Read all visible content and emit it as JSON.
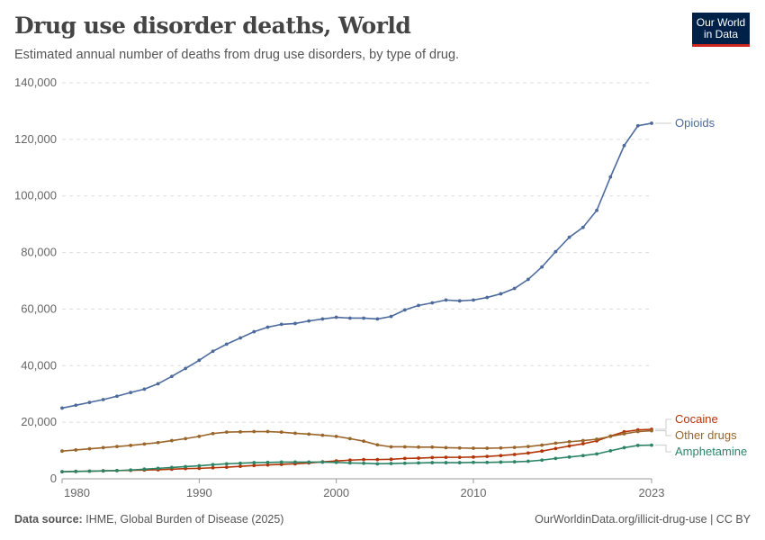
{
  "header": {
    "title": "Drug use disorder deaths, World",
    "subtitle": "Estimated annual number of deaths from drug use disorders, by type of drug.",
    "logo": "Our World in Data"
  },
  "footer": {
    "source_label": "Data source:",
    "source": "IHME, Global Burden of Disease (2025)",
    "link": "OurWorldinData.org/illicit-drug-use | CC BY"
  },
  "chart_data": {
    "type": "line",
    "title": "Drug use disorder deaths, World",
    "xlim": [
      1980,
      2023
    ],
    "ylim": [
      0,
      140000
    ],
    "x_ticks": [
      "1980",
      "1990",
      "2000",
      "2010",
      "2023"
    ],
    "y_ticks": [
      "0",
      "20,000",
      "40,000",
      "60,000",
      "80,000",
      "100,000",
      "120,000",
      "140,000"
    ],
    "grid": "horizontal dashed",
    "legend": "right, line-end labels",
    "x": [
      1980,
      1981,
      1982,
      1983,
      1984,
      1985,
      1986,
      1987,
      1988,
      1989,
      1990,
      1991,
      1992,
      1993,
      1994,
      1995,
      1996,
      1997,
      1998,
      1999,
      2000,
      2001,
      2002,
      2003,
      2004,
      2005,
      2006,
      2007,
      2008,
      2009,
      2010,
      2011,
      2012,
      2013,
      2014,
      2015,
      2016,
      2017,
      2018,
      2019,
      2020,
      2021,
      2022,
      2023
    ],
    "series": [
      {
        "name": "Opioids",
        "color": "#4c6a9c",
        "values": [
          25000,
          26000,
          27000,
          28000,
          29200,
          30500,
          31700,
          33600,
          36200,
          39000,
          41900,
          45100,
          47600,
          49800,
          52000,
          53600,
          54600,
          54900,
          55800,
          56500,
          57100,
          56800,
          56800,
          56500,
          57400,
          59700,
          61300,
          62200,
          63200,
          62900,
          63200,
          64100,
          65400,
          67300,
          70500,
          74900,
          80300,
          85400,
          88900,
          94900,
          106700,
          117800,
          124800,
          125700
        ]
      },
      {
        "name": "Cocaine",
        "color": "#b13507",
        "values": [
          2500,
          2600,
          2700,
          2800,
          2900,
          3000,
          3100,
          3200,
          3400,
          3600,
          3700,
          3900,
          4100,
          4400,
          4700,
          4900,
          5100,
          5300,
          5600,
          6000,
          6300,
          6600,
          6800,
          6800,
          6900,
          7200,
          7300,
          7500,
          7600,
          7600,
          7700,
          7900,
          8200,
          8600,
          9100,
          9800,
          10700,
          11600,
          12400,
          13400,
          15100,
          16600,
          17300,
          17500
        ]
      },
      {
        "name": "Other drugs",
        "color": "#9a652a",
        "values": [
          9800,
          10200,
          10600,
          11000,
          11400,
          11800,
          12300,
          12800,
          13500,
          14200,
          15000,
          16000,
          16500,
          16600,
          16700,
          16700,
          16500,
          16100,
          15800,
          15400,
          15000,
          14200,
          13300,
          12000,
          11300,
          11300,
          11200,
          11200,
          11000,
          10900,
          10800,
          10800,
          10900,
          11100,
          11400,
          11900,
          12600,
          13100,
          13500,
          14000,
          15000,
          15900,
          16700,
          17000
        ]
      },
      {
        "name": "Amphetamine",
        "color": "#2c8465",
        "values": [
          2500,
          2600,
          2700,
          2800,
          2900,
          3100,
          3400,
          3700,
          4000,
          4300,
          4600,
          5000,
          5300,
          5500,
          5700,
          5800,
          5900,
          5900,
          5900,
          5900,
          5800,
          5600,
          5500,
          5300,
          5400,
          5500,
          5600,
          5700,
          5700,
          5700,
          5800,
          5800,
          5900,
          6000,
          6200,
          6600,
          7200,
          7700,
          8200,
          8800,
          9900,
          11000,
          11800,
          11900
        ]
      }
    ]
  }
}
